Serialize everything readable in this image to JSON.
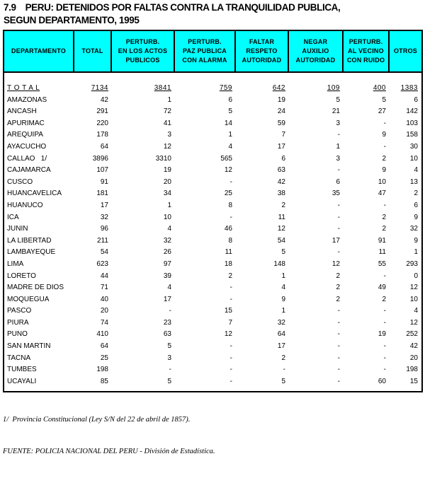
{
  "title": {
    "number": "7.9",
    "line1": "PERU: DETENIDOS POR FALTAS CONTRA LA TRANQUILIDAD PUBLICA,",
    "line2": "SEGUN DEPARTAMENTO, 1995"
  },
  "table": {
    "header_bg": "#00FFFF",
    "headers": [
      "DEPARTAMENTO",
      "TOTAL",
      "PERTURB.\nEN LOS ACTOS\nPUBLICOS",
      "PERTURB.\nPAZ PUBLICA\nCON ALARMA",
      "FALTAR\nRESPETO\nAUTORIDAD",
      "NEGAR\nAUXILIO\nAUTORIDAD",
      "PERTURB.\nAL VECINO\nCON RUIDO",
      "OTROS"
    ],
    "total_row": {
      "label": "T O T A L",
      "values": [
        "7134",
        "3841",
        "759",
        "642",
        "109",
        "400",
        "1383"
      ]
    },
    "rows": [
      {
        "name": "AMAZONAS",
        "values": [
          "42",
          "1",
          "6",
          "19",
          "5",
          "5",
          "6"
        ]
      },
      {
        "name": "ANCASH",
        "values": [
          "291",
          "72",
          "5",
          "24",
          "21",
          "27",
          "142"
        ]
      },
      {
        "name": "APURIMAC",
        "values": [
          "220",
          "41",
          "14",
          "59",
          "3",
          "-",
          "103"
        ]
      },
      {
        "name": "AREQUIPA",
        "values": [
          "178",
          "3",
          "1",
          "7",
          "-",
          "9",
          "158"
        ]
      },
      {
        "name": "AYACUCHO",
        "values": [
          "64",
          "12",
          "4",
          "17",
          "1",
          "-",
          "30"
        ]
      },
      {
        "name": "CALLAO   1/",
        "values": [
          "3896",
          "3310",
          "565",
          "6",
          "3",
          "2",
          "10"
        ]
      },
      {
        "name": "CAJAMARCA",
        "values": [
          "107",
          "19",
          "12",
          "63",
          "-",
          "9",
          "4"
        ]
      },
      {
        "name": "CUSCO",
        "values": [
          "91",
          "20",
          "-",
          "42",
          "6",
          "10",
          "13"
        ]
      },
      {
        "name": "HUANCAVELICA",
        "values": [
          "181",
          "34",
          "25",
          "38",
          "35",
          "47",
          "2"
        ]
      },
      {
        "name": "HUANUCO",
        "values": [
          "17",
          "1",
          "8",
          "2",
          "-",
          "-",
          "6"
        ]
      },
      {
        "name": "ICA",
        "values": [
          "32",
          "10",
          "-",
          "11",
          "-",
          "2",
          "9"
        ]
      },
      {
        "name": "JUNIN",
        "values": [
          "96",
          "4",
          "46",
          "12",
          "-",
          "2",
          "32"
        ]
      },
      {
        "name": "LA LIBERTAD",
        "values": [
          "211",
          "32",
          "8",
          "54",
          "17",
          "91",
          "9"
        ]
      },
      {
        "name": "LAMBAYEQUE",
        "values": [
          "54",
          "26",
          "11",
          "5",
          "-",
          "11",
          "1"
        ]
      },
      {
        "name": "LIMA",
        "values": [
          "623",
          "97",
          "18",
          "148",
          "12",
          "55",
          "293"
        ]
      },
      {
        "name": "LORETO",
        "values": [
          "44",
          "39",
          "2",
          "1",
          "2",
          "-",
          "0"
        ]
      },
      {
        "name": "MADRE DE DIOS",
        "values": [
          "71",
          "4",
          "-",
          "4",
          "2",
          "49",
          "12"
        ]
      },
      {
        "name": "MOQUEGUA",
        "values": [
          "40",
          "17",
          "-",
          "9",
          "2",
          "2",
          "10"
        ]
      },
      {
        "name": "PASCO",
        "values": [
          "20",
          "-",
          "15",
          "1",
          "-",
          "-",
          "4"
        ]
      },
      {
        "name": "PIURA",
        "values": [
          "74",
          "23",
          "7",
          "32",
          "-",
          "-",
          "12"
        ]
      },
      {
        "name": "PUNO",
        "values": [
          "410",
          "63",
          "12",
          "64",
          "-",
          "19",
          "252"
        ]
      },
      {
        "name": "SAN MARTIN",
        "values": [
          "64",
          "5",
          "-",
          "17",
          "-",
          "-",
          "42"
        ]
      },
      {
        "name": "TACNA",
        "values": [
          "25",
          "3",
          "-",
          "2",
          "-",
          "-",
          "20"
        ]
      },
      {
        "name": "TUMBES",
        "values": [
          "198",
          "-",
          "-",
          "-",
          "-",
          "-",
          "198"
        ]
      },
      {
        "name": "UCAYALI",
        "values": [
          "85",
          "5",
          "-",
          "5",
          "-",
          "60",
          "15"
        ]
      }
    ]
  },
  "footnotes": {
    "line1": "1/  Provincia Constitucional (Ley S/N del 22 de abril de 1857).",
    "line2": "FUENTE: POLICIA NACIONAL DEL PERU - División de Estadística."
  }
}
